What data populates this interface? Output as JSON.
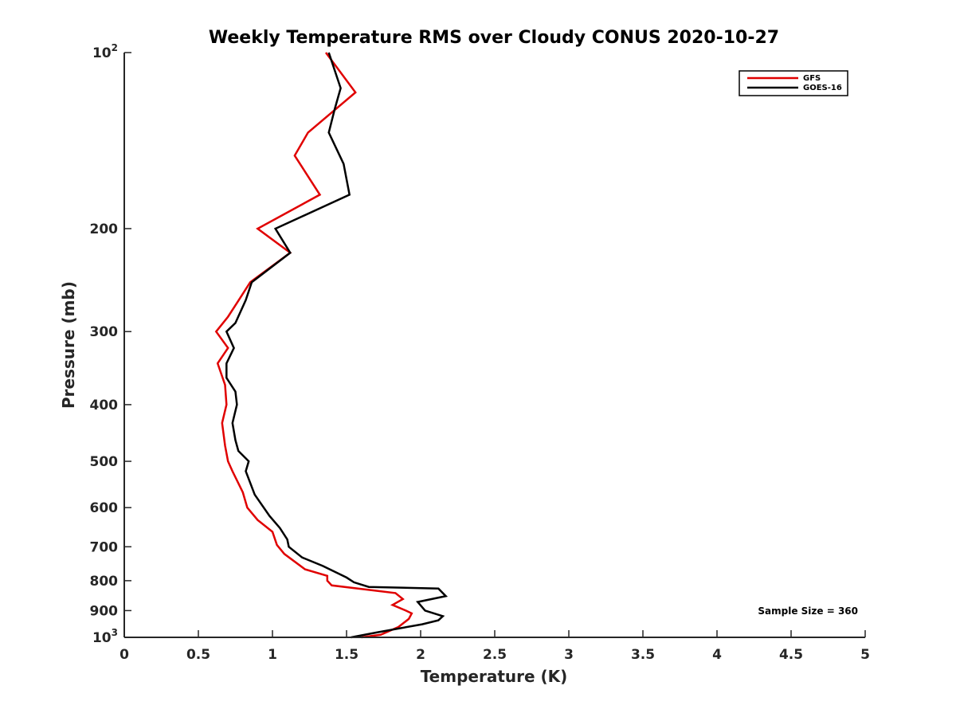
{
  "chart_data": {
    "type": "line",
    "title": "Weekly Temperature RMS over Cloudy CONUS 2020-10-27",
    "xlabel": "Temperature (K)",
    "ylabel": "Pressure (mb)",
    "xlim": [
      0,
      5
    ],
    "ylim": [
      100,
      1000
    ],
    "y_scale": "log",
    "y_reversed": true,
    "grid": false,
    "legend_position": "top-right",
    "x_ticks": [
      0,
      0.5,
      1,
      1.5,
      2,
      2.5,
      3,
      3.5,
      4,
      4.5,
      5
    ],
    "x_tick_labels": [
      "0",
      "0.5",
      "1",
      "1.5",
      "2",
      "2.5",
      "3",
      "3.5",
      "4",
      "4.5",
      "5"
    ],
    "y_ticks": [
      100,
      200,
      300,
      400,
      500,
      600,
      700,
      800,
      900,
      1000
    ],
    "y_tick_labels": [
      {
        "base": "10",
        "exp": "2"
      },
      {
        "base": "200",
        "exp": ""
      },
      {
        "base": "300",
        "exp": ""
      },
      {
        "base": "400",
        "exp": ""
      },
      {
        "base": "500",
        "exp": ""
      },
      {
        "base": "600",
        "exp": ""
      },
      {
        "base": "700",
        "exp": ""
      },
      {
        "base": "800",
        "exp": ""
      },
      {
        "base": "900",
        "exp": ""
      },
      {
        "base": "10",
        "exp": "3"
      }
    ],
    "annotation": "Sample Size = 360",
    "series": [
      {
        "name": "GFS",
        "color": "#e00000",
        "points": [
          [
            1.36,
            100
          ],
          [
            1.56,
            117
          ],
          [
            1.24,
            137
          ],
          [
            1.15,
            150
          ],
          [
            1.32,
            175
          ],
          [
            0.9,
            200
          ],
          [
            1.12,
            220
          ],
          [
            0.85,
            247
          ],
          [
            0.76,
            268
          ],
          [
            0.7,
            283
          ],
          [
            0.62,
            300
          ],
          [
            0.7,
            320
          ],
          [
            0.63,
            340
          ],
          [
            0.68,
            370
          ],
          [
            0.69,
            400
          ],
          [
            0.66,
            430
          ],
          [
            0.68,
            470
          ],
          [
            0.7,
            500
          ],
          [
            0.73,
            520
          ],
          [
            0.8,
            565
          ],
          [
            0.83,
            600
          ],
          [
            0.9,
            630
          ],
          [
            1.0,
            660
          ],
          [
            1.03,
            695
          ],
          [
            1.08,
            720
          ],
          [
            1.22,
            765
          ],
          [
            1.37,
            785
          ],
          [
            1.37,
            800
          ],
          [
            1.4,
            815
          ],
          [
            1.83,
            840
          ],
          [
            1.88,
            860
          ],
          [
            1.81,
            880
          ],
          [
            1.9,
            900
          ],
          [
            1.94,
            910
          ],
          [
            1.92,
            930
          ],
          [
            1.85,
            960
          ],
          [
            1.73,
            990
          ],
          [
            1.6,
            1000
          ]
        ]
      },
      {
        "name": "GOES-16",
        "color": "#000000",
        "points": [
          [
            1.38,
            100
          ],
          [
            1.46,
            115
          ],
          [
            1.42,
            125
          ],
          [
            1.38,
            137
          ],
          [
            1.48,
            155
          ],
          [
            1.52,
            175
          ],
          [
            1.02,
            200
          ],
          [
            1.12,
            220
          ],
          [
            0.86,
            247
          ],
          [
            0.82,
            265
          ],
          [
            0.75,
            290
          ],
          [
            0.69,
            300
          ],
          [
            0.74,
            320
          ],
          [
            0.69,
            340
          ],
          [
            0.69,
            360
          ],
          [
            0.75,
            380
          ],
          [
            0.76,
            400
          ],
          [
            0.73,
            430
          ],
          [
            0.75,
            460
          ],
          [
            0.77,
            480
          ],
          [
            0.84,
            500
          ],
          [
            0.82,
            520
          ],
          [
            0.88,
            570
          ],
          [
            0.98,
            620
          ],
          [
            1.05,
            650
          ],
          [
            1.1,
            680
          ],
          [
            1.11,
            700
          ],
          [
            1.2,
            730
          ],
          [
            1.34,
            755
          ],
          [
            1.5,
            790
          ],
          [
            1.55,
            805
          ],
          [
            1.65,
            820
          ],
          [
            2.12,
            825
          ],
          [
            2.17,
            850
          ],
          [
            1.98,
            870
          ],
          [
            2.03,
            900
          ],
          [
            2.15,
            920
          ],
          [
            2.12,
            935
          ],
          [
            2.01,
            950
          ],
          [
            1.71,
            980
          ],
          [
            1.53,
            1000
          ]
        ]
      }
    ]
  }
}
